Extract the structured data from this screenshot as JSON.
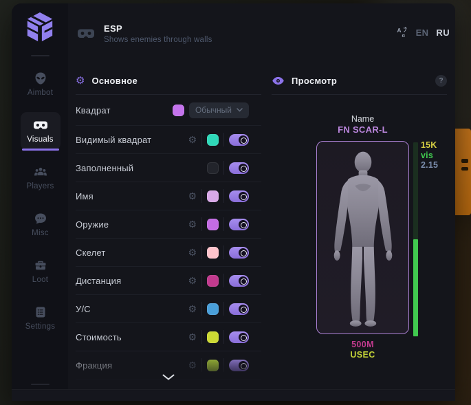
{
  "chrome": {
    "header": {
      "title": "ESP",
      "subtitle": "Shows enemies through walls",
      "icon": "vr-goggles-icon"
    },
    "lang": {
      "icon": "translate-icon",
      "options": [
        {
          "code": "EN",
          "active": false
        },
        {
          "code": "RU",
          "active": true
        }
      ]
    }
  },
  "sidebar": {
    "logo_icon": "sg-cube-logo",
    "items": [
      {
        "label": "Aimbot",
        "icon": "alien-icon",
        "active": false
      },
      {
        "label": "Visuals",
        "icon": "vr-goggles-icon",
        "active": true
      },
      {
        "label": "Players",
        "icon": "people-icon",
        "active": false
      },
      {
        "label": "Misc",
        "icon": "chat-bubble-icon",
        "active": false
      },
      {
        "label": "Loot",
        "icon": "chest-icon",
        "active": false
      },
      {
        "label": "Settings",
        "icon": "list-icon",
        "active": false
      }
    ]
  },
  "main_section": {
    "title": "Основное",
    "icon": "gear-icon",
    "rows": [
      {
        "label": "Квадрат",
        "gear": false,
        "color": "#c473ec",
        "control": "dropdown",
        "dropdown_value": "Обычный"
      },
      {
        "label": "Видимый квадрат",
        "gear": true,
        "color": "#2fd9b9",
        "control": "toggle",
        "toggle_on": true
      },
      {
        "label": "Заполненный",
        "gear": false,
        "color": "#22242b",
        "control": "toggle",
        "toggle_on": true
      },
      {
        "label": "Имя",
        "gear": true,
        "color": "#d9a9e8",
        "control": "toggle",
        "toggle_on": true
      },
      {
        "label": "Оружие",
        "gear": true,
        "color": "#c46ce4",
        "control": "toggle",
        "toggle_on": true
      },
      {
        "label": "Скелет",
        "gear": true,
        "color": "#ffc4cc",
        "control": "toggle",
        "toggle_on": true
      },
      {
        "label": "Дистанция",
        "gear": true,
        "color": "#c23a8e",
        "control": "toggle",
        "toggle_on": true
      },
      {
        "label": "У/С",
        "gear": true,
        "color": "#4a9fd9",
        "control": "toggle",
        "toggle_on": true
      },
      {
        "label": "Стоимость",
        "gear": true,
        "color": "#ccd934",
        "control": "toggle",
        "toggle_on": true
      },
      {
        "label": "Фракция",
        "gear": true,
        "color": "#b4d53c",
        "control": "toggle",
        "toggle_on": true
      }
    ],
    "more_indicator": "chevron-down-icon"
  },
  "preview": {
    "title": "Просмотр",
    "icon": "eye-icon",
    "help_badge": "?",
    "target": {
      "name_label": "Name",
      "weapon": "FN SCAR-L",
      "weapon_color": "#bb86dd",
      "stats": [
        {
          "text": "15K",
          "color": "#d6cf43"
        },
        {
          "text": "vis",
          "color": "#41c94f"
        },
        {
          "text": "2.15",
          "color": "#7a8cab"
        }
      ],
      "distance": "500M",
      "distance_color": "#c23a8e",
      "faction": "USEC",
      "faction_color": "#c3d338",
      "health_bar": {
        "fill_percent": 50,
        "fill_color": "#41c94f",
        "track_color": "#1b2f20"
      }
    }
  },
  "theme": {
    "accent": "#8b72e8",
    "toggle_color": "#9579e6"
  }
}
